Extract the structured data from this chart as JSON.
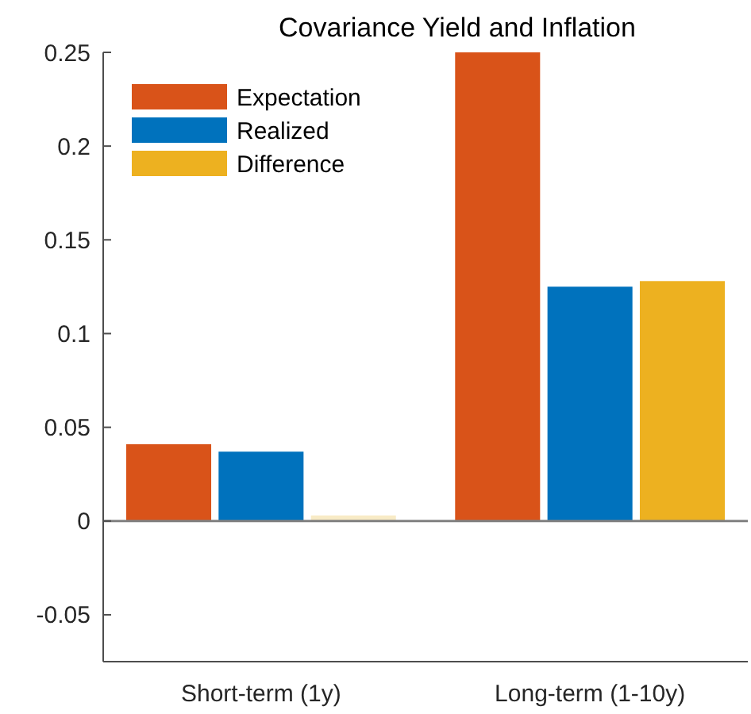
{
  "chart_data": {
    "type": "bar",
    "title": "Covariance Yield and Inflation",
    "categories": [
      "Short-term (1y)",
      "Long-term (1-10y)"
    ],
    "series": [
      {
        "name": "Expectation",
        "color": "#d95319",
        "values": [
          0.041,
          0.25
        ]
      },
      {
        "name": "Realized",
        "color": "#0072bd",
        "values": [
          0.037,
          0.125
        ]
      },
      {
        "name": "Difference",
        "color": "#edb120",
        "colors": [
          "#f8ebc6",
          "#edb120"
        ],
        "values": [
          0.003,
          0.128
        ]
      }
    ],
    "ylim": [
      -0.075,
      0.25
    ],
    "yticks": [
      -0.05,
      0,
      0.05,
      0.1,
      0.15,
      0.2,
      0.25
    ],
    "ref_lines": [
      {
        "axis": "y",
        "value": 0,
        "color": "#808080"
      }
    ],
    "legend": "top left",
    "grid": false
  }
}
